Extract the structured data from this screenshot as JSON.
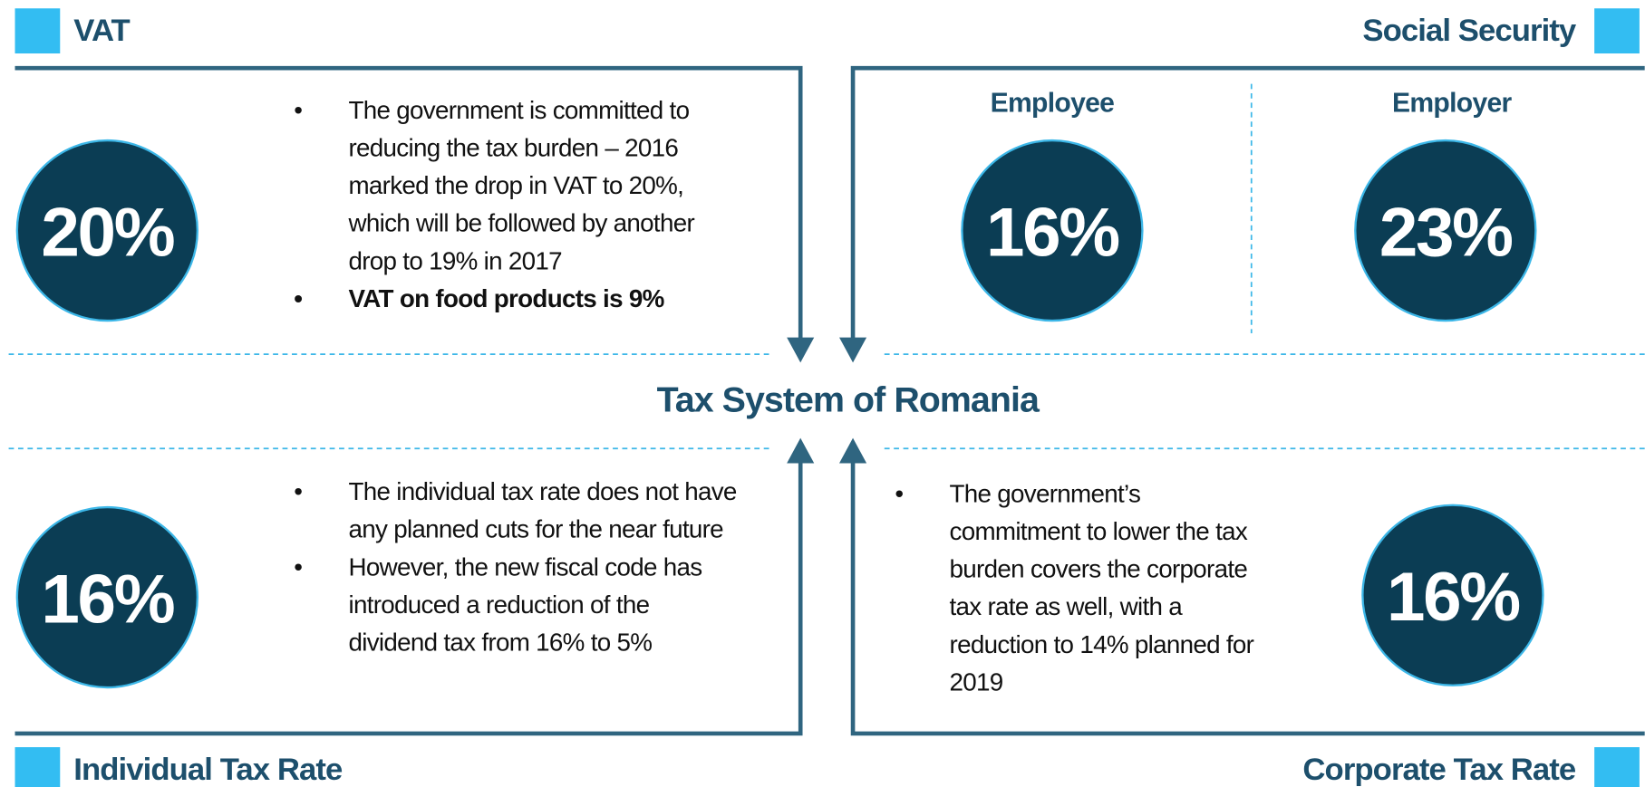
{
  "vat": {
    "title": "VAT",
    "rate": "20%",
    "bullets": [
      "The government is committed to reducing the tax burden – 2016 marked the drop in VAT to 20%, which will be followed by another drop to 19% in 2017",
      "VAT on food products is 9%"
    ]
  },
  "social_security": {
    "title": "Social Security",
    "employee": {
      "label": "Employee",
      "rate": "16%"
    },
    "employer": {
      "label": "Employer",
      "rate": "23%"
    }
  },
  "center_title": "Tax System of Romania",
  "individual_tax_rate": {
    "title": "Individual Tax Rate",
    "rate": "16%",
    "bullets": [
      "The individual tax rate does not have any planned cuts for the near future",
      "However, the new fiscal code has introduced a reduction of the dividend tax from 16% to 5%"
    ]
  },
  "corporate_tax_rate": {
    "title": "Corporate Tax Rate",
    "rate": "16%",
    "bullets": [
      "The government’s commitment to lower the tax burden covers the corporate tax rate as well, with a reduction to 14% planned for 2019"
    ]
  }
}
